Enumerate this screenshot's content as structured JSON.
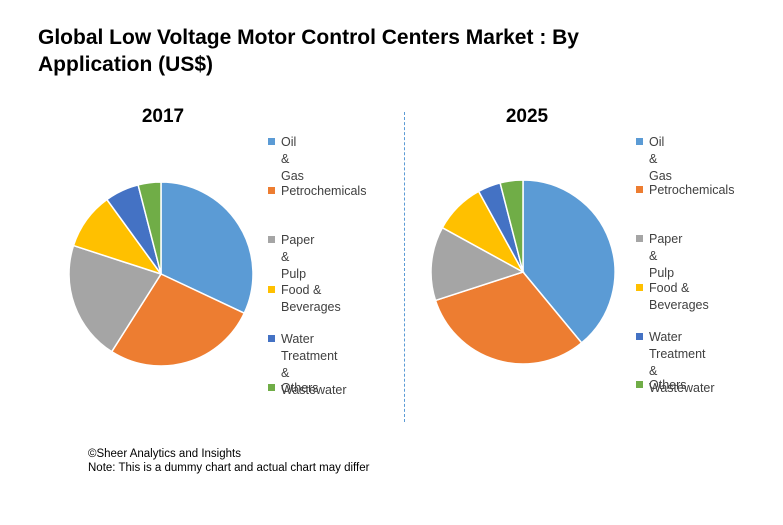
{
  "title": "Global Low Voltage Motor Control Centers Market : By Application (US$)",
  "colors": {
    "oil_gas": "#5b9bd5",
    "petrochemicals": "#ed7d31",
    "paper_pulp": "#a5a5a5",
    "food_beverages": "#ffc000",
    "water_treatment": "#4472c4",
    "others": "#70ad47"
  },
  "chart_data": [
    {
      "type": "pie",
      "title": "2017",
      "categories": [
        "Oil & Gas",
        "Petrochemicals",
        "Paper & Pulp",
        "Food & Beverages",
        "Water Treatment & Wastewater",
        "Others"
      ],
      "values": [
        32,
        27,
        21,
        10,
        6,
        4
      ],
      "legend_labels": [
        "Oil & Gas",
        "Petrochemicals",
        "Paper & Pulp",
        "Food & Beverages",
        "Water Treatment\n& Wastewater",
        "Others"
      ],
      "legend_position": "right"
    },
    {
      "type": "pie",
      "title": "2025",
      "categories": [
        "Oil & Gas",
        "Petrochemicals",
        "Paper & Pulp",
        "Food & Beverages",
        "Water Treatment & Wastewater",
        "Others"
      ],
      "values": [
        39,
        31,
        13,
        9,
        4,
        4
      ],
      "legend_labels": [
        "Oil & Gas",
        "Petrochemicals",
        "Paper & Pulp",
        "Food &\nBeverages",
        "Water Treatment\n& Wastewater",
        "Others"
      ],
      "legend_position": "right"
    }
  ],
  "footer": {
    "line1": "©Sheer Analytics and Insights",
    "line2": "Note: This is a dummy chart and actual chart may differ"
  }
}
